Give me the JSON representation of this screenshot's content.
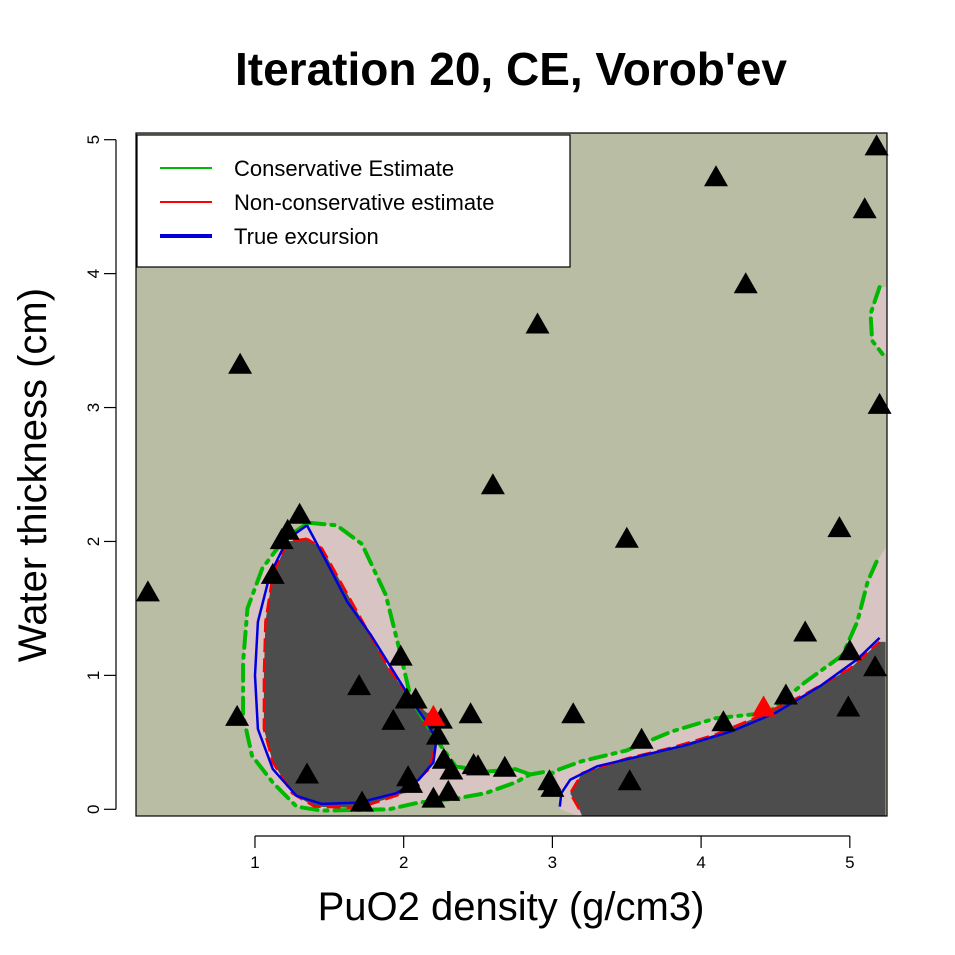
{
  "chart_data": {
    "type": "scatter",
    "title": "Iteration 20, CE, Vorob'ev",
    "xlabel": "PuO2 density (g/cm3)",
    "ylabel": "Water thickness (cm)",
    "xlim": [
      0.2,
      5.25
    ],
    "ylim": [
      -0.05,
      5.05
    ],
    "x_ticks": [
      1,
      2,
      3,
      4,
      5
    ],
    "y_ticks": [
      0,
      1,
      2,
      3,
      4,
      5
    ],
    "grid": false,
    "legend_position": "top-left",
    "colors": {
      "background": "#b8bda3",
      "excursion": "#4d4d4d",
      "margin": "#d9c4c4",
      "conservative": "#00b800",
      "nonconservative": "#ff0000",
      "true_excursion": "#0000dd",
      "points": "#000000",
      "new_points": "#ff0000"
    },
    "legend": [
      {
        "label": "Conservative Estimate",
        "color": "#00b800",
        "style": "solid-thin"
      },
      {
        "label": "Non-conservative estimate",
        "color": "#ff0000",
        "style": "solid-thin"
      },
      {
        "label": "True excursion",
        "color": "#0000dd",
        "style": "solid-thick"
      }
    ],
    "points": [
      [
        0.28,
        1.62
      ],
      [
        0.88,
        0.69
      ],
      [
        0.9,
        3.32
      ],
      [
        1.12,
        1.75
      ],
      [
        1.18,
        2.01
      ],
      [
        1.22,
        2.08
      ],
      [
        1.3,
        2.2
      ],
      [
        1.35,
        0.26
      ],
      [
        1.7,
        0.92
      ],
      [
        1.72,
        0.05
      ],
      [
        1.93,
        0.66
      ],
      [
        1.98,
        1.14
      ],
      [
        2.02,
        0.82
      ],
      [
        2.03,
        0.24
      ],
      [
        2.05,
        0.19
      ],
      [
        2.08,
        0.82
      ],
      [
        2.2,
        0.08
      ],
      [
        2.23,
        0.55
      ],
      [
        2.25,
        0.67
      ],
      [
        2.27,
        0.37
      ],
      [
        2.3,
        0.13
      ],
      [
        2.32,
        0.29
      ],
      [
        2.45,
        0.71
      ],
      [
        2.47,
        0.33
      ],
      [
        2.5,
        0.32
      ],
      [
        2.68,
        0.31
      ],
      [
        2.6,
        2.42
      ],
      [
        2.9,
        3.62
      ],
      [
        2.98,
        0.21
      ],
      [
        3.0,
        0.16
      ],
      [
        3.14,
        0.71
      ],
      [
        3.5,
        2.02
      ],
      [
        3.52,
        0.21
      ],
      [
        3.6,
        0.52
      ],
      [
        4.1,
        4.72
      ],
      [
        4.15,
        0.65
      ],
      [
        4.3,
        3.92
      ],
      [
        4.57,
        0.85
      ],
      [
        4.7,
        1.32
      ],
      [
        4.93,
        2.1
      ],
      [
        4.99,
        0.76
      ],
      [
        5.0,
        1.18
      ],
      [
        5.1,
        4.48
      ],
      [
        5.17,
        1.06
      ],
      [
        5.18,
        4.95
      ],
      [
        5.2,
        3.02
      ]
    ],
    "new_points": [
      [
        2.2,
        0.69
      ],
      [
        4.42,
        0.76
      ]
    ],
    "true_excursion": [
      [
        [
          1.35,
          2.12
        ],
        [
          1.22,
          2.02
        ],
        [
          1.1,
          1.75
        ],
        [
          1.02,
          1.4
        ],
        [
          1.0,
          1.0
        ],
        [
          1.02,
          0.6
        ],
        [
          1.12,
          0.3
        ],
        [
          1.28,
          0.1
        ],
        [
          1.45,
          0.04
        ],
        [
          1.7,
          0.05
        ],
        [
          1.95,
          0.12
        ],
        [
          2.1,
          0.22
        ],
        [
          2.2,
          0.35
        ],
        [
          2.22,
          0.52
        ],
        [
          2.16,
          0.64
        ],
        [
          2.05,
          0.82
        ],
        [
          1.92,
          1.05
        ],
        [
          1.78,
          1.3
        ],
        [
          1.62,
          1.55
        ],
        [
          1.48,
          1.85
        ],
        [
          1.35,
          2.12
        ]
      ],
      [
        [
          3.05,
          0.02
        ],
        [
          3.06,
          0.12
        ],
        [
          3.12,
          0.22
        ],
        [
          3.3,
          0.32
        ],
        [
          3.6,
          0.4
        ],
        [
          3.9,
          0.48
        ],
        [
          4.2,
          0.58
        ],
        [
          4.5,
          0.72
        ],
        [
          4.8,
          0.92
        ],
        [
          5.05,
          1.12
        ],
        [
          5.2,
          1.28
        ]
      ]
    ],
    "nonconservative": [
      [
        [
          1.35,
          2.02
        ],
        [
          1.22,
          2.0
        ],
        [
          1.12,
          1.75
        ],
        [
          1.07,
          1.4
        ],
        [
          1.06,
          1.0
        ],
        [
          1.06,
          0.6
        ],
        [
          1.12,
          0.35
        ],
        [
          1.25,
          0.12
        ],
        [
          1.4,
          0.02
        ],
        [
          1.7,
          0.01
        ],
        [
          2.0,
          0.12
        ],
        [
          2.17,
          0.3
        ],
        [
          2.22,
          0.5
        ],
        [
          2.2,
          0.68
        ],
        [
          2.05,
          0.82
        ],
        [
          1.9,
          1.05
        ],
        [
          1.75,
          1.35
        ],
        [
          1.6,
          1.65
        ],
        [
          1.45,
          1.95
        ],
        [
          1.35,
          2.02
        ]
      ],
      [
        [
          3.18,
          0.0
        ],
        [
          3.12,
          0.12
        ],
        [
          3.2,
          0.27
        ],
        [
          3.5,
          0.38
        ],
        [
          3.8,
          0.46
        ],
        [
          4.1,
          0.56
        ],
        [
          4.4,
          0.7
        ],
        [
          4.7,
          0.86
        ],
        [
          5.0,
          1.05
        ],
        [
          5.2,
          1.25
        ]
      ]
    ],
    "conservative": [
      [
        [
          1.36,
          2.14
        ],
        [
          1.2,
          2.02
        ],
        [
          1.05,
          1.8
        ],
        [
          0.95,
          1.5
        ],
        [
          0.92,
          1.1
        ],
        [
          0.92,
          0.7
        ],
        [
          0.98,
          0.4
        ],
        [
          1.12,
          0.2
        ],
        [
          1.28,
          0.02
        ],
        [
          1.45,
          -0.01
        ],
        [
          1.9,
          0.0
        ],
        [
          2.1,
          0.05
        ],
        [
          2.35,
          0.08
        ],
        [
          2.55,
          0.12
        ],
        [
          2.75,
          0.2
        ],
        [
          2.85,
          0.26
        ],
        [
          2.95,
          0.28
        ],
        [
          3.0,
          0.27
        ],
        [
          3.05,
          0.3
        ],
        [
          3.2,
          0.36
        ],
        [
          3.5,
          0.44
        ],
        [
          3.8,
          0.58
        ],
        [
          4.1,
          0.68
        ],
        [
          4.45,
          0.72
        ],
        [
          4.7,
          0.95
        ],
        [
          4.95,
          1.15
        ],
        [
          5.05,
          1.4
        ],
        [
          5.12,
          1.7
        ],
        [
          5.18,
          1.85
        ]
      ],
      [
        [
          1.36,
          2.14
        ],
        [
          1.55,
          2.12
        ],
        [
          1.72,
          1.98
        ],
        [
          1.88,
          1.6
        ],
        [
          1.97,
          1.2
        ],
        [
          2.05,
          0.82
        ],
        [
          2.2,
          0.55
        ],
        [
          2.35,
          0.32
        ],
        [
          2.55,
          0.28
        ],
        [
          2.75,
          0.3
        ],
        [
          2.85,
          0.26
        ]
      ],
      [
        [
          5.2,
          3.9
        ],
        [
          5.14,
          3.7
        ],
        [
          5.15,
          3.5
        ],
        [
          5.22,
          3.4
        ]
      ]
    ]
  }
}
